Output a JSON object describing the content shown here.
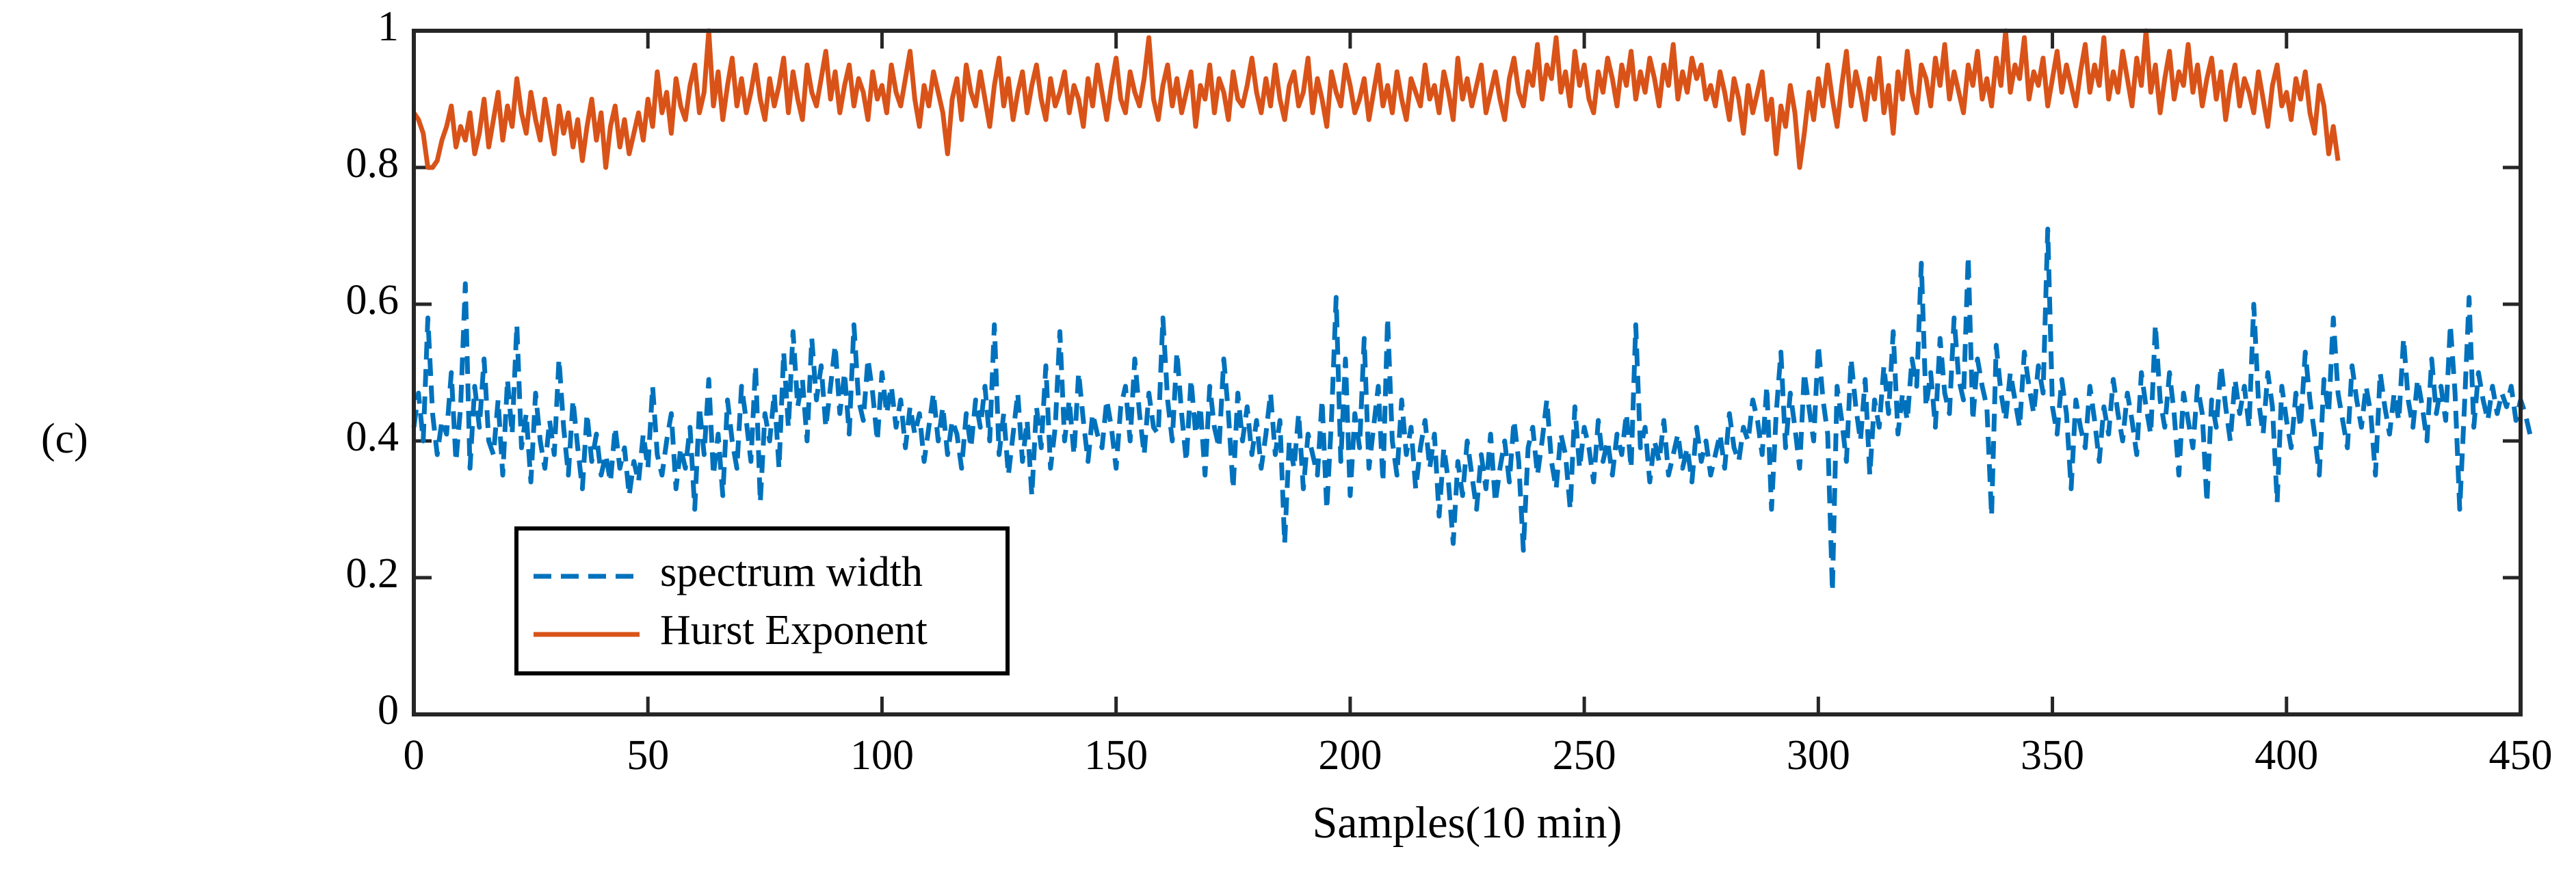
{
  "panel_label": "(c)",
  "colors": {
    "hurst": "#d95319",
    "spectrum": "#0072bd",
    "axes": "#262626"
  },
  "chart_data": {
    "type": "line",
    "xlabel": "Samples(10 min)",
    "ylabel": "",
    "xlim": [
      0,
      450
    ],
    "ylim": [
      0,
      1
    ],
    "x_ticks": [
      0,
      50,
      100,
      150,
      200,
      250,
      300,
      350,
      400,
      450
    ],
    "x_tick_labels": [
      "0",
      "50",
      "100",
      "150",
      "200",
      "250",
      "300",
      "350",
      "400",
      "450"
    ],
    "y_ticks": [
      0,
      0.2,
      0.4,
      0.6,
      0.8,
      1
    ],
    "y_tick_labels": [
      "0",
      "0.2",
      "0.4",
      "0.6",
      "0.8",
      "1"
    ],
    "legend_position": "bottom-left",
    "series": [
      {
        "name": "spectrum width",
        "style": "dashed",
        "x_start": 0,
        "x_step": 1,
        "values": [
          0.42,
          0.47,
          0.4,
          0.58,
          0.44,
          0.38,
          0.43,
          0.41,
          0.5,
          0.37,
          0.45,
          0.63,
          0.36,
          0.48,
          0.42,
          0.52,
          0.4,
          0.38,
          0.46,
          0.35,
          0.49,
          0.41,
          0.57,
          0.39,
          0.44,
          0.34,
          0.47,
          0.4,
          0.36,
          0.43,
          0.38,
          0.52,
          0.42,
          0.35,
          0.46,
          0.39,
          0.33,
          0.44,
          0.37,
          0.41,
          0.35,
          0.38,
          0.34,
          0.42,
          0.36,
          0.39,
          0.32,
          0.37,
          0.34,
          0.41,
          0.36,
          0.48,
          0.38,
          0.35,
          0.4,
          0.44,
          0.33,
          0.39,
          0.36,
          0.42,
          0.3,
          0.45,
          0.38,
          0.49,
          0.35,
          0.41,
          0.32,
          0.46,
          0.4,
          0.36,
          0.48,
          0.43,
          0.37,
          0.51,
          0.31,
          0.44,
          0.4,
          0.47,
          0.36,
          0.53,
          0.42,
          0.56,
          0.45,
          0.49,
          0.4,
          0.55,
          0.46,
          0.51,
          0.42,
          0.48,
          0.54,
          0.44,
          0.5,
          0.41,
          0.57,
          0.46,
          0.43,
          0.52,
          0.47,
          0.4,
          0.5,
          0.44,
          0.48,
          0.42,
          0.46,
          0.39,
          0.45,
          0.41,
          0.44,
          0.37,
          0.42,
          0.47,
          0.4,
          0.45,
          0.38,
          0.43,
          0.41,
          0.36,
          0.44,
          0.39,
          0.46,
          0.42,
          0.48,
          0.4,
          0.57,
          0.38,
          0.44,
          0.35,
          0.41,
          0.47,
          0.37,
          0.43,
          0.32,
          0.45,
          0.39,
          0.51,
          0.36,
          0.42,
          0.56,
          0.4,
          0.46,
          0.38,
          0.5,
          0.43,
          0.37,
          0.44,
          0.41,
          0.39,
          0.46,
          0.42,
          0.36,
          0.45,
          0.48,
          0.4,
          0.52,
          0.44,
          0.38,
          0.47,
          0.42,
          0.41,
          0.58,
          0.46,
          0.4,
          0.53,
          0.44,
          0.37,
          0.49,
          0.41,
          0.45,
          0.35,
          0.48,
          0.42,
          0.39,
          0.52,
          0.44,
          0.33,
          0.47,
          0.4,
          0.45,
          0.38,
          0.43,
          0.36,
          0.41,
          0.47,
          0.38,
          0.43,
          0.25,
          0.4,
          0.36,
          0.44,
          0.33,
          0.41,
          0.38,
          0.35,
          0.46,
          0.3,
          0.43,
          0.61,
          0.37,
          0.52,
          0.32,
          0.44,
          0.39,
          0.55,
          0.36,
          0.42,
          0.48,
          0.34,
          0.58,
          0.4,
          0.35,
          0.46,
          0.38,
          0.42,
          0.33,
          0.39,
          0.43,
          0.36,
          0.41,
          0.29,
          0.39,
          0.34,
          0.25,
          0.37,
          0.32,
          0.4,
          0.35,
          0.3,
          0.38,
          0.33,
          0.41,
          0.31,
          0.36,
          0.4,
          0.34,
          0.43,
          0.37,
          0.24,
          0.39,
          0.42,
          0.35,
          0.4,
          0.46,
          0.37,
          0.33,
          0.41,
          0.38,
          0.3,
          0.45,
          0.36,
          0.42,
          0.39,
          0.34,
          0.43,
          0.37,
          0.4,
          0.35,
          0.41,
          0.38,
          0.44,
          0.36,
          0.57,
          0.39,
          0.42,
          0.34,
          0.4,
          0.37,
          0.43,
          0.35,
          0.38,
          0.41,
          0.36,
          0.39,
          0.34,
          0.42,
          0.37,
          0.4,
          0.35,
          0.38,
          0.41,
          0.36,
          0.44,
          0.39,
          0.37,
          0.42,
          0.4,
          0.46,
          0.43,
          0.38,
          0.48,
          0.3,
          0.44,
          0.53,
          0.39,
          0.47,
          0.42,
          0.36,
          0.5,
          0.45,
          0.4,
          0.54,
          0.46,
          0.41,
          0.18,
          0.48,
          0.43,
          0.37,
          0.52,
          0.45,
          0.4,
          0.49,
          0.35,
          0.46,
          0.42,
          0.51,
          0.44,
          0.56,
          0.41,
          0.47,
          0.43,
          0.52,
          0.48,
          0.66,
          0.45,
          0.5,
          0.42,
          0.55,
          0.47,
          0.44,
          0.58,
          0.49,
          0.46,
          0.67,
          0.43,
          0.52,
          0.48,
          0.45,
          0.29,
          0.54,
          0.47,
          0.43,
          0.5,
          0.46,
          0.42,
          0.53,
          0.48,
          0.44,
          0.51,
          0.47,
          0.71,
          0.45,
          0.41,
          0.49,
          0.44,
          0.33,
          0.46,
          0.42,
          0.39,
          0.48,
          0.43,
          0.37,
          0.45,
          0.41,
          0.49,
          0.44,
          0.4,
          0.47,
          0.43,
          0.38,
          0.5,
          0.45,
          0.41,
          0.57,
          0.46,
          0.42,
          0.5,
          0.44,
          0.35,
          0.47,
          0.43,
          0.39,
          0.48,
          0.44,
          0.31,
          0.46,
          0.42,
          0.51,
          0.45,
          0.4,
          0.49,
          0.44,
          0.48,
          0.42,
          0.6,
          0.46,
          0.41,
          0.5,
          0.45,
          0.31,
          0.48,
          0.43,
          0.39,
          0.47,
          0.42,
          0.53,
          0.46,
          0.41,
          0.35,
          0.49,
          0.44,
          0.58,
          0.47,
          0.43,
          0.39,
          0.51,
          0.46,
          0.42,
          0.48,
          0.44,
          0.35,
          0.5,
          0.45,
          0.41,
          0.47,
          0.43,
          0.55,
          0.46,
          0.42,
          0.49,
          0.45,
          0.4,
          0.52,
          0.44,
          0.48,
          0.43,
          0.57,
          0.47,
          0.3,
          0.45,
          0.61,
          0.42,
          0.5,
          0.46,
          0.43,
          0.48,
          0.44,
          0.47,
          0.45,
          0.48,
          0.43,
          0.46,
          0.44,
          0.41
        ]
      },
      {
        "name": "Hurst Exponent",
        "style": "solid",
        "x_start": 0,
        "x_step": 1,
        "values": [
          0.88,
          0.87,
          0.85,
          0.8,
          0.8,
          0.81,
          0.84,
          0.86,
          0.89,
          0.83,
          0.86,
          0.84,
          0.88,
          0.82,
          0.85,
          0.9,
          0.83,
          0.87,
          0.91,
          0.84,
          0.89,
          0.86,
          0.93,
          0.88,
          0.85,
          0.91,
          0.87,
          0.84,
          0.9,
          0.86,
          0.82,
          0.89,
          0.85,
          0.88,
          0.83,
          0.87,
          0.81,
          0.86,
          0.9,
          0.84,
          0.88,
          0.8,
          0.86,
          0.89,
          0.83,
          0.87,
          0.82,
          0.85,
          0.88,
          0.84,
          0.9,
          0.86,
          0.94,
          0.88,
          0.91,
          0.85,
          0.93,
          0.89,
          0.87,
          0.92,
          0.95,
          0.88,
          0.91,
          1.0,
          0.89,
          0.94,
          0.87,
          0.92,
          0.96,
          0.89,
          0.93,
          0.88,
          0.91,
          0.95,
          0.9,
          0.87,
          0.93,
          0.89,
          0.92,
          0.96,
          0.88,
          0.94,
          0.9,
          0.87,
          0.95,
          0.91,
          0.89,
          0.93,
          0.97,
          0.9,
          0.94,
          0.88,
          0.92,
          0.95,
          0.89,
          0.93,
          0.91,
          0.87,
          0.94,
          0.9,
          0.92,
          0.88,
          0.95,
          0.91,
          0.89,
          0.93,
          0.97,
          0.9,
          0.86,
          0.92,
          0.89,
          0.94,
          0.91,
          0.88,
          0.82,
          0.9,
          0.93,
          0.87,
          0.95,
          0.91,
          0.89,
          0.94,
          0.9,
          0.86,
          0.92,
          0.96,
          0.89,
          0.93,
          0.87,
          0.91,
          0.94,
          0.88,
          0.92,
          0.95,
          0.9,
          0.87,
          0.93,
          0.89,
          0.91,
          0.94,
          0.88,
          0.92,
          0.9,
          0.86,
          0.93,
          0.89,
          0.95,
          0.91,
          0.87,
          0.92,
          0.96,
          0.9,
          0.88,
          0.94,
          0.91,
          0.89,
          0.93,
          0.99,
          0.9,
          0.87,
          0.92,
          0.95,
          0.89,
          0.93,
          0.88,
          0.91,
          0.94,
          0.86,
          0.92,
          0.9,
          0.95,
          0.88,
          0.93,
          0.91,
          0.87,
          0.94,
          0.9,
          0.89,
          0.92,
          0.96,
          0.91,
          0.88,
          0.93,
          0.89,
          0.95,
          0.9,
          0.87,
          0.92,
          0.94,
          0.89,
          0.91,
          0.96,
          0.88,
          0.93,
          0.9,
          0.86,
          0.94,
          0.91,
          0.89,
          0.95,
          0.92,
          0.88,
          0.9,
          0.93,
          0.87,
          0.91,
          0.95,
          0.89,
          0.92,
          0.88,
          0.94,
          0.9,
          0.87,
          0.93,
          0.91,
          0.89,
          0.95,
          0.9,
          0.92,
          0.88,
          0.94,
          0.91,
          0.87,
          0.96,
          0.9,
          0.93,
          0.89,
          0.92,
          0.95,
          0.88,
          0.91,
          0.94,
          0.9,
          0.87,
          0.93,
          0.96,
          0.91,
          0.89,
          0.94,
          0.92,
          0.98,
          0.9,
          0.95,
          0.93,
          0.99,
          0.91,
          0.94,
          0.89,
          0.97,
          0.92,
          0.95,
          0.9,
          0.88,
          0.94,
          0.91,
          0.96,
          0.93,
          0.89,
          0.95,
          0.92,
          0.97,
          0.9,
          0.94,
          0.91,
          0.96,
          0.93,
          0.89,
          0.95,
          0.92,
          0.98,
          0.9,
          0.94,
          0.91,
          0.96,
          0.93,
          0.95,
          0.9,
          0.92,
          0.89,
          0.94,
          0.91,
          0.87,
          0.93,
          0.9,
          0.85,
          0.92,
          0.88,
          0.91,
          0.94,
          0.87,
          0.9,
          0.82,
          0.89,
          0.86,
          0.92,
          0.88,
          0.8,
          0.85,
          0.91,
          0.87,
          0.93,
          0.89,
          0.95,
          0.9,
          0.86,
          0.92,
          0.97,
          0.89,
          0.94,
          0.91,
          0.87,
          0.93,
          0.9,
          0.96,
          0.88,
          0.92,
          0.85,
          0.94,
          0.9,
          0.97,
          0.91,
          0.88,
          0.95,
          0.93,
          0.89,
          0.96,
          0.92,
          0.98,
          0.9,
          0.94,
          0.91,
          0.88,
          0.95,
          0.92,
          0.97,
          0.9,
          0.93,
          0.89,
          0.96,
          0.92,
          1.0,
          0.91,
          0.95,
          0.93,
          0.99,
          0.9,
          0.94,
          0.92,
          0.96,
          0.89,
          0.93,
          0.97,
          0.91,
          0.95,
          0.92,
          0.89,
          0.94,
          0.98,
          0.91,
          0.95,
          0.92,
          0.99,
          0.9,
          0.94,
          0.91,
          0.97,
          0.93,
          0.89,
          0.96,
          0.92,
          1.0,
          0.91,
          0.95,
          0.88,
          0.93,
          0.97,
          0.9,
          0.94,
          0.92,
          0.98,
          0.91,
          0.95,
          0.89,
          0.93,
          0.96,
          0.9,
          0.94,
          0.87,
          0.92,
          0.95,
          0.89,
          0.93,
          0.91,
          0.88,
          0.94,
          0.9,
          0.86,
          0.92,
          0.95,
          0.89,
          0.91,
          0.87,
          0.93,
          0.9,
          0.94,
          0.88,
          0.85,
          0.92,
          0.89,
          0.82,
          0.86,
          0.81
        ]
      }
    ]
  }
}
